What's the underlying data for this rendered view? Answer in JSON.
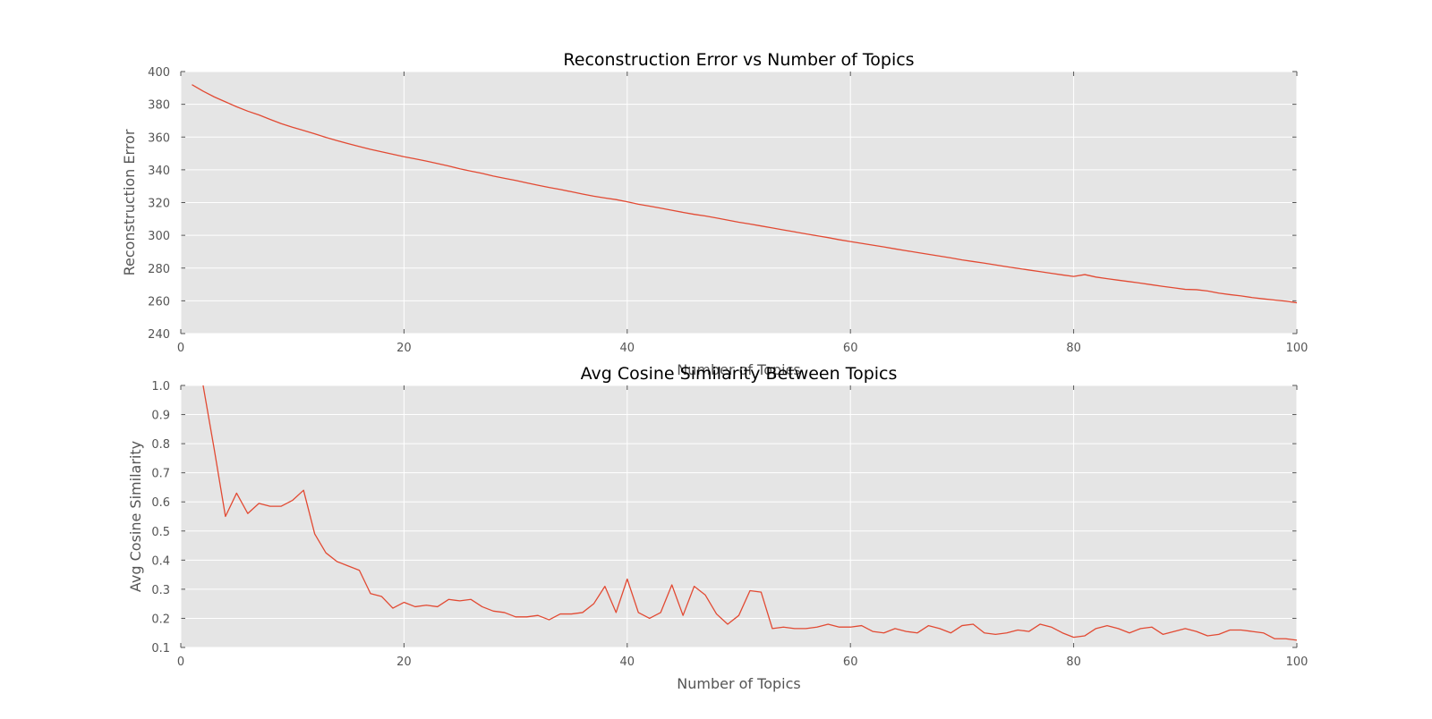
{
  "chart_data": [
    {
      "type": "line",
      "title": "Reconstruction Error vs Number of Topics",
      "xlabel": "Number of Topics",
      "ylabel": "Reconstruction Error",
      "xlim": [
        0,
        100
      ],
      "ylim": [
        240,
        400
      ],
      "xticks": [
        0,
        20,
        40,
        60,
        80,
        100
      ],
      "yticks": [
        240,
        260,
        280,
        300,
        320,
        340,
        360,
        380,
        400
      ],
      "grid": true,
      "background": "#e5e5e5",
      "line_color": "#e24a33",
      "series": [
        {
          "x": [
            1,
            2,
            3,
            4,
            5,
            6,
            7,
            8,
            9,
            10,
            11,
            12,
            13,
            14,
            15,
            16,
            17,
            18,
            19,
            20,
            21,
            22,
            23,
            24,
            25,
            26,
            27,
            28,
            29,
            30,
            31,
            32,
            33,
            34,
            35,
            36,
            37,
            38,
            39,
            40,
            41,
            42,
            43,
            44,
            45,
            46,
            47,
            48,
            49,
            50,
            51,
            52,
            53,
            54,
            55,
            56,
            57,
            58,
            59,
            60,
            61,
            62,
            63,
            64,
            65,
            66,
            67,
            68,
            69,
            70,
            71,
            72,
            73,
            74,
            75,
            76,
            77,
            78,
            79,
            80,
            81,
            82,
            83,
            84,
            85,
            86,
            87,
            88,
            89,
            90,
            91,
            92,
            93,
            94,
            95,
            96,
            97,
            98,
            99,
            100
          ],
          "values": [
            392,
            388,
            384.5,
            381.5,
            378.5,
            375.8,
            373.5,
            370.8,
            368.2,
            366,
            364,
            362,
            359.8,
            357.8,
            356,
            354.2,
            352.5,
            351,
            349.5,
            348,
            346.7,
            345.3,
            343.8,
            342.3,
            340.6,
            339.2,
            337.8,
            336.2,
            334.8,
            333.5,
            332,
            330.6,
            329.2,
            328,
            326.6,
            325.2,
            323.9,
            322.8,
            321.8,
            320.5,
            319,
            317.8,
            316.6,
            315.3,
            314,
            312.8,
            311.8,
            310.6,
            309.3,
            308,
            306.9,
            305.7,
            304.5,
            303.3,
            302.1,
            300.9,
            299.7,
            298.6,
            297.3,
            296.2,
            295.1,
            294,
            292.9,
            291.7,
            290.6,
            289.5,
            288.4,
            287.3,
            286.2,
            285,
            284,
            283,
            281.9,
            280.8,
            279.8,
            278.8,
            277.8,
            276.8,
            275.8,
            274.9,
            276,
            274.5,
            273.5,
            272.6,
            271.7,
            270.8,
            269.8,
            268.8,
            267.9,
            267,
            266.8,
            266,
            264.7,
            263.8,
            263,
            262,
            261.2,
            260.5,
            259.8,
            258.8
          ]
        }
      ]
    },
    {
      "type": "line",
      "title": "Avg Cosine Similarity Between Topics",
      "xlabel": "Number of Topics",
      "ylabel": "Avg Cosine Similarity",
      "xlim": [
        0,
        100
      ],
      "ylim": [
        0.1,
        1.0
      ],
      "xticks": [
        0,
        20,
        40,
        60,
        80,
        100
      ],
      "yticks": [
        0.1,
        0.2,
        0.3,
        0.4,
        0.5,
        0.6,
        0.7,
        0.8,
        0.9,
        1.0
      ],
      "grid": true,
      "background": "#e5e5e5",
      "line_color": "#e24a33",
      "series": [
        {
          "x": [
            2,
            3,
            4,
            5,
            6,
            7,
            8,
            9,
            10,
            11,
            12,
            13,
            14,
            15,
            16,
            17,
            18,
            19,
            20,
            21,
            22,
            23,
            24,
            25,
            26,
            27,
            28,
            29,
            30,
            31,
            32,
            33,
            34,
            35,
            36,
            37,
            38,
            39,
            40,
            41,
            42,
            43,
            44,
            45,
            46,
            47,
            48,
            49,
            50,
            51,
            52,
            53,
            54,
            55,
            56,
            57,
            58,
            59,
            60,
            61,
            62,
            63,
            64,
            65,
            66,
            67,
            68,
            69,
            70,
            71,
            72,
            73,
            74,
            75,
            76,
            77,
            78,
            79,
            80,
            81,
            82,
            83,
            84,
            85,
            86,
            87,
            88,
            89,
            90,
            91,
            92,
            93,
            94,
            95,
            96,
            97,
            98,
            99,
            100
          ],
          "values": [
            1.0,
            0.78,
            0.55,
            0.63,
            0.56,
            0.595,
            0.585,
            0.585,
            0.605,
            0.64,
            0.49,
            0.425,
            0.395,
            0.38,
            0.365,
            0.285,
            0.275,
            0.235,
            0.255,
            0.24,
            0.245,
            0.24,
            0.265,
            0.26,
            0.265,
            0.24,
            0.225,
            0.22,
            0.205,
            0.205,
            0.21,
            0.195,
            0.215,
            0.215,
            0.22,
            0.25,
            0.31,
            0.22,
            0.335,
            0.22,
            0.2,
            0.22,
            0.315,
            0.21,
            0.31,
            0.28,
            0.215,
            0.18,
            0.21,
            0.295,
            0.29,
            0.165,
            0.17,
            0.165,
            0.165,
            0.17,
            0.18,
            0.17,
            0.17,
            0.175,
            0.155,
            0.15,
            0.165,
            0.155,
            0.15,
            0.175,
            0.165,
            0.15,
            0.175,
            0.18,
            0.15,
            0.145,
            0.15,
            0.16,
            0.155,
            0.18,
            0.17,
            0.15,
            0.135,
            0.14,
            0.165,
            0.175,
            0.165,
            0.15,
            0.165,
            0.17,
            0.145,
            0.155,
            0.165,
            0.155,
            0.14,
            0.145,
            0.16,
            0.16,
            0.155,
            0.15,
            0.13,
            0.13,
            0.125
          ]
        }
      ]
    }
  ]
}
